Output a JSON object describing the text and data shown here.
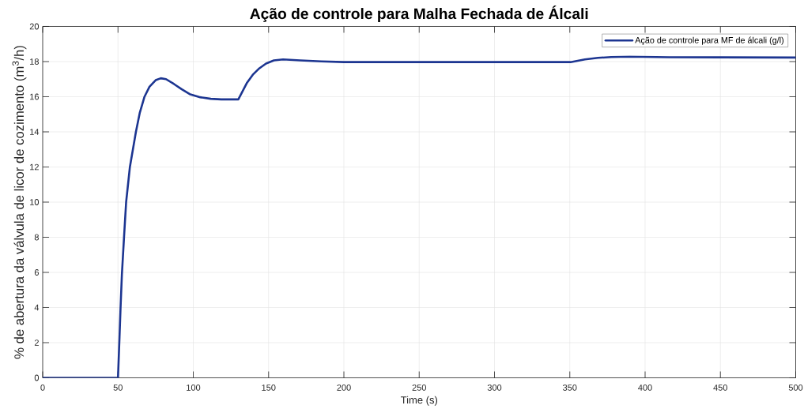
{
  "chart_data": {
    "type": "line",
    "title": "Ação de controle para Malha Fechada de Álcali",
    "xlabel": "Time (s)",
    "ylabel": "% de abertura da válvula de licor de cozimento (m$^{3}$/h)",
    "x": [
      0,
      50,
      51.0,
      51.7,
      52.6,
      54.0,
      55.4,
      57.9,
      61.9,
      64.5,
      67.6,
      70.9,
      75.0,
      78.4,
      81.9,
      87.2,
      92.4,
      97.6,
      104.6,
      111.6,
      118.6,
      129.9,
      132.5,
      135.7,
      139.5,
      143.9,
      148.3,
      153.5,
      159.6,
      171,
      185,
      200,
      250,
      300,
      350.5,
      360,
      368.7,
      377.5,
      389.7,
      416,
      450,
      500
    ],
    "series": [
      {
        "name": "Ação de controle para MF de álcali (g/l)",
        "color": "#1c3591",
        "values": [
          0,
          0,
          2.3,
          4.0,
          5.9,
          8.0,
          10.0,
          12.0,
          14.0,
          15.1,
          16.0,
          16.57,
          16.94,
          17.05,
          17.0,
          16.72,
          16.42,
          16.15,
          15.97,
          15.88,
          15.85,
          15.85,
          16.27,
          16.8,
          17.25,
          17.62,
          17.89,
          18.07,
          18.12,
          18.07,
          18.01,
          17.97,
          17.97,
          17.97,
          17.97,
          18.12,
          18.21,
          18.26,
          18.28,
          18.25,
          18.24,
          18.23
        ]
      }
    ],
    "xlim": [
      0,
      500
    ],
    "ylim": [
      0,
      20
    ],
    "xticks": [
      0,
      50,
      100,
      150,
      200,
      250,
      300,
      350,
      400,
      450,
      500
    ],
    "yticks": [
      0,
      2,
      4,
      6,
      8,
      10,
      12,
      14,
      16,
      18,
      20
    ],
    "grid": true,
    "legend": "top right",
    "marker": "none",
    "line_style": "solid"
  }
}
